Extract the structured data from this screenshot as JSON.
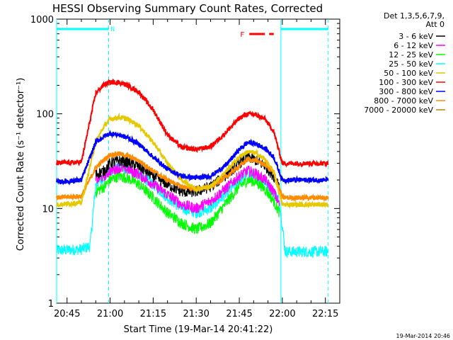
{
  "chart_data": {
    "type": "line",
    "title": "HESSI Observing Summary Count Rates, Corrected",
    "xlabel": "Start Time (19-Mar-14 20:41:22)",
    "ylabel": "Corrected Count Rate (s⁻¹ detector⁻¹)",
    "y_scale": "log",
    "ylim": [
      1,
      1000
    ],
    "xlim": [
      "20:41:22",
      "22:20:00"
    ],
    "x_ticks": [
      "20:45",
      "21:00",
      "21:15",
      "21:30",
      "21:45",
      "22:00",
      "22:15"
    ],
    "y_ticks": [
      "1",
      "10",
      "100",
      "1000"
    ],
    "legend": {
      "header_line1": "Det 1,3,5,6,7,9,",
      "header_line2": "Att 0",
      "placement": "right-outside"
    },
    "timestamp": "19-Mar-2014 20:46",
    "annotations": [
      {
        "label": "N",
        "color": "#00ffff",
        "x_start": "20:41:22",
        "x_end": "20:59:30",
        "kind": "night-bar"
      },
      {
        "label": "N",
        "color": "#00ffff",
        "x_start": "21:59:30",
        "x_end": "22:16:00",
        "kind": "night-bar"
      },
      {
        "label": "F",
        "color": "#ff0000",
        "x_start": "21:48:30",
        "x_end": "21:57:00",
        "kind": "flag-bar"
      }
    ],
    "series": [
      {
        "name": "3 - 6 keV",
        "color": "#000000",
        "x": [
          "20:55",
          "20:58",
          "21:00",
          "21:03",
          "21:06",
          "21:10",
          "21:15",
          "21:20",
          "21:25",
          "21:30",
          "21:35",
          "21:40",
          "21:45",
          "21:48",
          "21:51",
          "21:54",
          "21:57",
          "21:59"
        ],
        "values": [
          23,
          25,
          30,
          32,
          31,
          28,
          22,
          18,
          15,
          15,
          17,
          22,
          30,
          35,
          32,
          28,
          22,
          18
        ]
      },
      {
        "name": "6 - 12 keV",
        "color": "#ff00ff",
        "x": [
          "20:55",
          "20:58",
          "21:00",
          "21:03",
          "21:06",
          "21:10",
          "21:15",
          "21:20",
          "21:25",
          "21:30",
          "21:35",
          "21:40",
          "21:45",
          "21:48",
          "21:51",
          "21:54",
          "21:57",
          "21:59"
        ],
        "values": [
          20,
          22,
          25,
          27,
          26,
          23,
          18,
          14,
          11,
          10,
          12,
          16,
          22,
          25,
          23,
          20,
          15,
          11
        ]
      },
      {
        "name": "12 - 25 keV",
        "color": "#00ff00",
        "x": [
          "20:55",
          "20:58",
          "21:00",
          "21:03",
          "21:06",
          "21:10",
          "21:15",
          "21:20",
          "21:25",
          "21:30",
          "21:35",
          "21:40",
          "21:45",
          "21:48",
          "21:51",
          "21:54",
          "21:57",
          "21:59"
        ],
        "values": [
          15,
          17,
          20,
          22,
          21,
          18,
          13,
          9,
          7,
          6,
          7,
          11,
          17,
          20,
          19,
          16,
          12,
          9
        ]
      },
      {
        "name": "25 - 50 keV",
        "color": "#00ffff",
        "x": [
          "20:41:22",
          "20:50",
          "20:53",
          "20:55",
          "20:58",
          "21:00",
          "21:03",
          "21:06",
          "21:10",
          "21:15",
          "21:20",
          "21:25",
          "21:30",
          "21:35",
          "21:40",
          "21:45",
          "21:48",
          "21:51",
          "21:54",
          "21:57",
          "21:59",
          "22:01",
          "22:05",
          "22:10",
          "22:16"
        ],
        "values": [
          3.6,
          3.7,
          4,
          18,
          22,
          25,
          27,
          26,
          23,
          18,
          13,
          10,
          9,
          10,
          14,
          20,
          23,
          22,
          19,
          15,
          12,
          3.5,
          3.5,
          3.5,
          3.5
        ]
      },
      {
        "name": "50 - 100 keV",
        "color": "#e6c800",
        "x": [
          "20:41:22",
          "20:50",
          "20:55",
          "20:58",
          "21:00",
          "21:03",
          "21:06",
          "21:10",
          "21:15",
          "21:20",
          "21:25",
          "21:30",
          "21:35",
          "21:40",
          "21:45",
          "21:48",
          "21:51",
          "21:54",
          "21:57",
          "22:00",
          "22:05",
          "22:10",
          "22:16"
        ],
        "values": [
          11,
          11.5,
          50,
          75,
          88,
          92,
          88,
          75,
          50,
          30,
          20,
          16,
          17,
          24,
          35,
          40,
          38,
          33,
          24,
          11,
          11,
          11,
          11
        ]
      },
      {
        "name": "100 - 300 keV",
        "color": "#ff0000",
        "x": [
          "20:41:22",
          "20:50",
          "20:55",
          "20:58",
          "21:00",
          "21:03",
          "21:06",
          "21:10",
          "21:15",
          "21:20",
          "21:25",
          "21:30",
          "21:35",
          "21:40",
          "21:45",
          "21:48",
          "21:51",
          "21:54",
          "21:57",
          "22:00",
          "22:05",
          "22:10",
          "22:16"
        ],
        "values": [
          30,
          31,
          165,
          205,
          215,
          215,
          200,
          170,
          110,
          60,
          44,
          42,
          45,
          62,
          90,
          100,
          97,
          88,
          65,
          30,
          30,
          30,
          30
        ]
      },
      {
        "name": "300 - 800 keV",
        "color": "#0000ff",
        "x": [
          "20:41:22",
          "20:50",
          "20:55",
          "20:58",
          "21:00",
          "21:03",
          "21:06",
          "21:10",
          "21:15",
          "21:20",
          "21:25",
          "21:30",
          "21:35",
          "21:40",
          "21:45",
          "21:48",
          "21:51",
          "21:54",
          "21:57",
          "22:00",
          "22:05",
          "22:10",
          "22:16"
        ],
        "values": [
          19,
          20,
          50,
          58,
          62,
          60,
          56,
          48,
          35,
          26,
          22,
          21,
          22,
          28,
          42,
          50,
          48,
          43,
          35,
          20,
          20,
          20,
          20
        ]
      },
      {
        "name": "800 - 7000 keV",
        "color": "#ff8c00",
        "x": [
          "20:41:22",
          "20:50",
          "20:55",
          "20:58",
          "21:00",
          "21:03",
          "21:06",
          "21:10",
          "21:15",
          "21:20",
          "21:25",
          "21:30",
          "21:35",
          "21:40",
          "21:45",
          "21:48",
          "21:51",
          "21:54",
          "21:57",
          "22:00",
          "22:05",
          "22:10",
          "22:16"
        ],
        "values": [
          13,
          13.5,
          27,
          33,
          37,
          38,
          36,
          32,
          25,
          20,
          17,
          16,
          17,
          21,
          28,
          33,
          32,
          29,
          24,
          13,
          13,
          13,
          13
        ]
      },
      {
        "name": "7000 - 20000 keV",
        "color": "#b8860b",
        "x": [],
        "values": []
      }
    ]
  }
}
